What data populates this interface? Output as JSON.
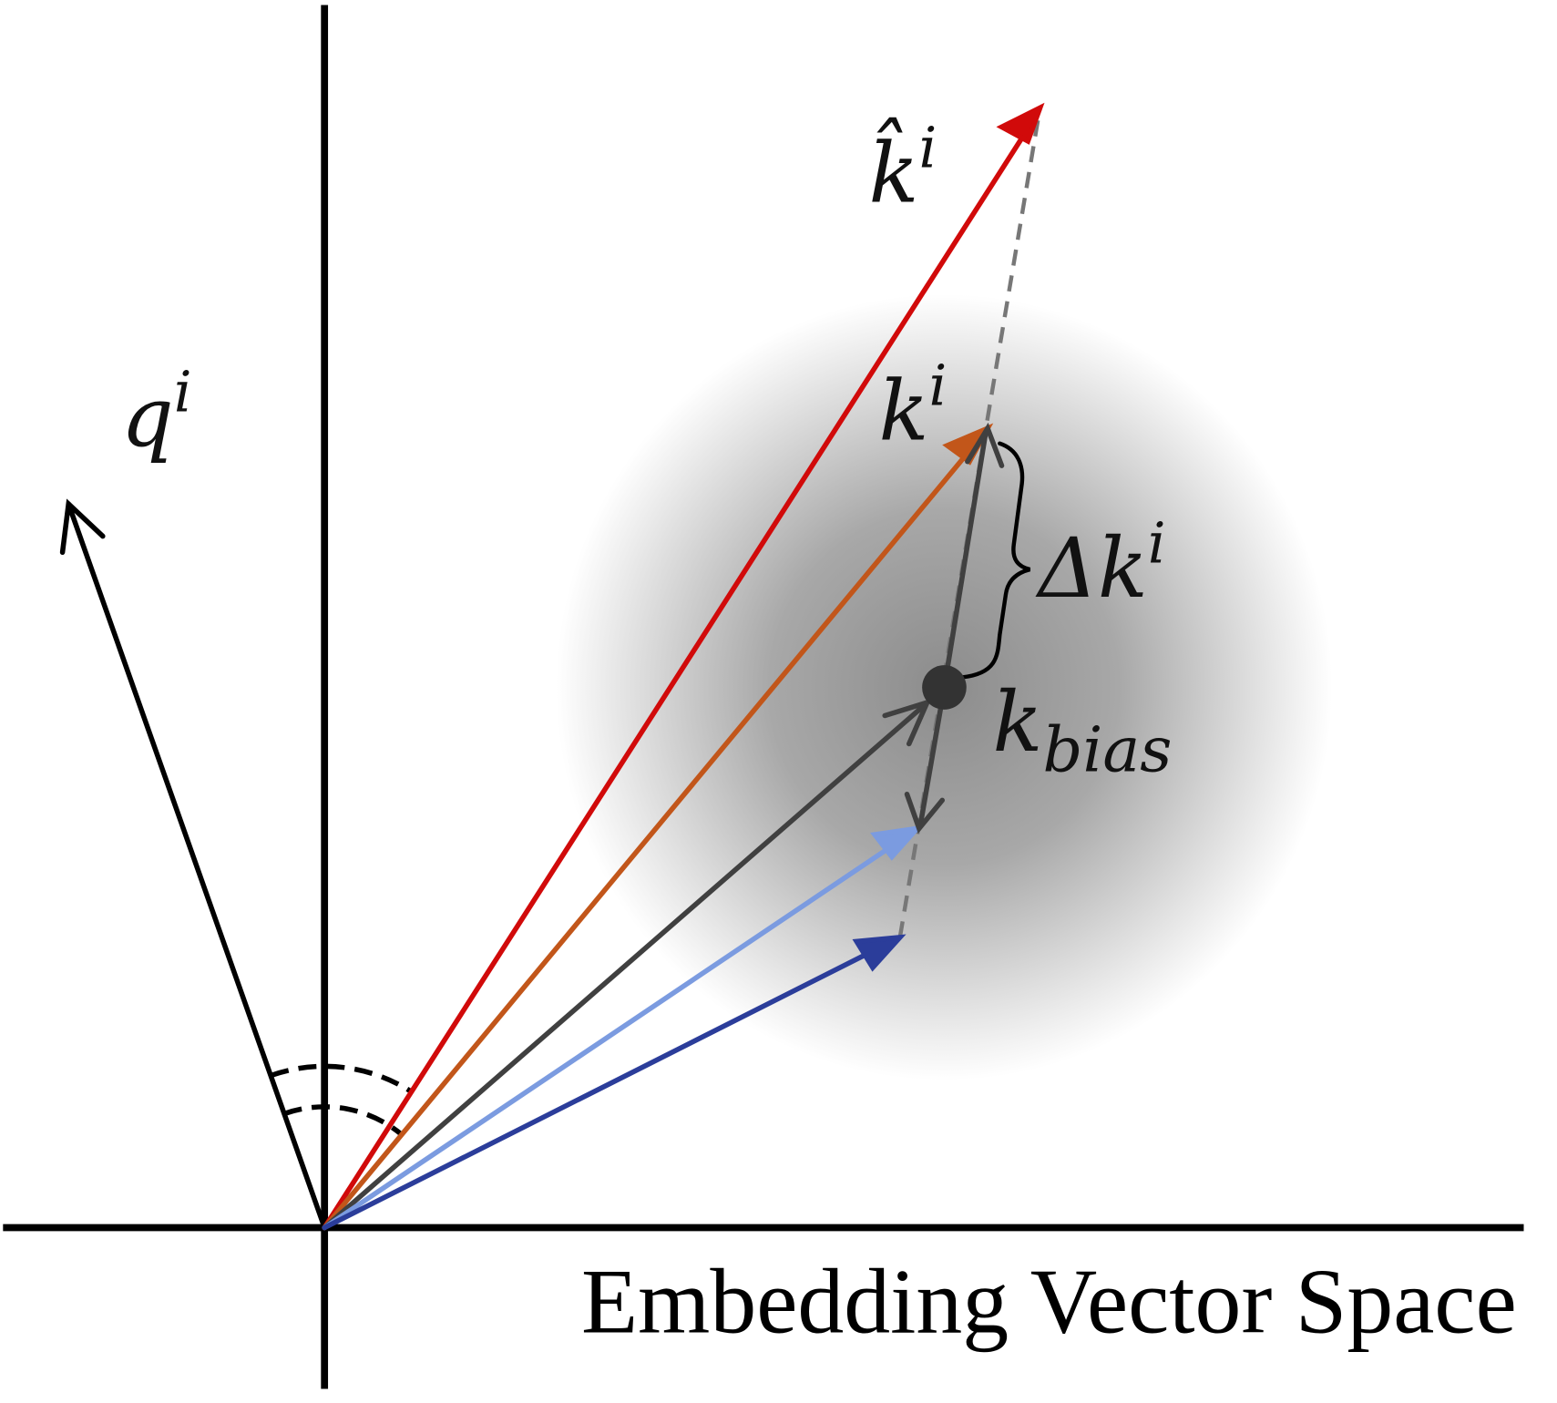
{
  "labels": {
    "k_hat": {
      "base": "k̂",
      "sup": "i"
    },
    "q": {
      "base": "q",
      "sup": "i"
    },
    "k": {
      "base": "k",
      "sup": "i"
    },
    "delta_k": {
      "base": "Δk",
      "sup": "i"
    },
    "k_bias": {
      "base": "k",
      "sub": "bias"
    },
    "space": "Embedding Vector Space"
  }
}
